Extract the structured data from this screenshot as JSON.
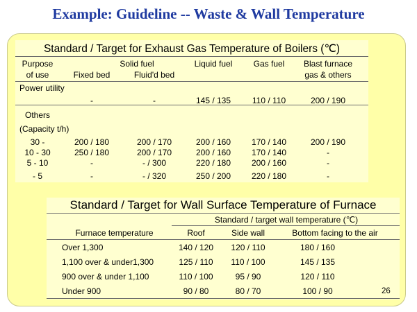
{
  "slide_title": "Example: Guideline -- Waste & Wall Temperature",
  "table1": {
    "title": "Standard / Target for Exhaust Gas Temperature of Boilers (℃)",
    "headers": {
      "purpose_line1": "Purpose",
      "purpose_line2": "of use",
      "solid_fuel": "Solid fuel",
      "fixed_bed": "Fixed bed",
      "fluid_bed": "Fluid'd bed",
      "liquid_fuel": "Liquid fuel",
      "gas_fuel": "Gas fuel",
      "blast_line1": "Blast furnace",
      "blast_line2": "gas & others"
    },
    "power_utility": {
      "label": "Power utility",
      "fixed": "-",
      "fluid": "-",
      "liquid": "145 / 135",
      "gas": "110 / 110",
      "blast": "200 / 190"
    },
    "others_label": "Others",
    "capacity_label": "(Capacity t/h)",
    "rows": [
      {
        "capacity": "30 -",
        "fixed": "200 / 180",
        "fluid": "200 / 170",
        "liquid": "200 / 160",
        "gas": "170 / 140",
        "blast": "200 / 190"
      },
      {
        "capacity": "10 - 30",
        "fixed": "250 / 180",
        "fluid": "200 / 170",
        "liquid": "200 / 160",
        "gas": "170 / 140",
        "blast": "-"
      },
      {
        "capacity": "5 - 10",
        "fixed": "-",
        "fluid": "-  / 300",
        "liquid": "220 / 180",
        "gas": "200 / 160",
        "blast": "-"
      },
      {
        "capacity": "- 5",
        "fixed": "-",
        "fluid": "-  / 320",
        "liquid": "250 / 200",
        "gas": "220 / 180",
        "blast": "-"
      }
    ]
  },
  "table2": {
    "title": "Standard / Target for Wall Surface Temperature of Furnace",
    "group_header": "Standard / target wall temperature (℃)",
    "furnace_temp_header": "Furnace temperature",
    "roof_header": "Roof",
    "side_header": "Side wall",
    "bottom_header": "Bottom facing to the air",
    "rows": [
      {
        "label": "Over 1,300",
        "roof": "140 / 120",
        "side": "120 / 110",
        "bottom": "180 / 160"
      },
      {
        "label": "1,100 over & under1,300",
        "roof": "125 / 110",
        "side": "110 / 100",
        "bottom": "145 / 135"
      },
      {
        "label": "900 over & under 1,100",
        "roof": "110 / 100",
        "side": "95 / 90",
        "bottom": "120 / 110"
      },
      {
        "label": "Under 900",
        "roof": "90 / 80",
        "side": "80 / 70",
        "bottom": "100 / 90"
      }
    ]
  },
  "page_number": "26"
}
